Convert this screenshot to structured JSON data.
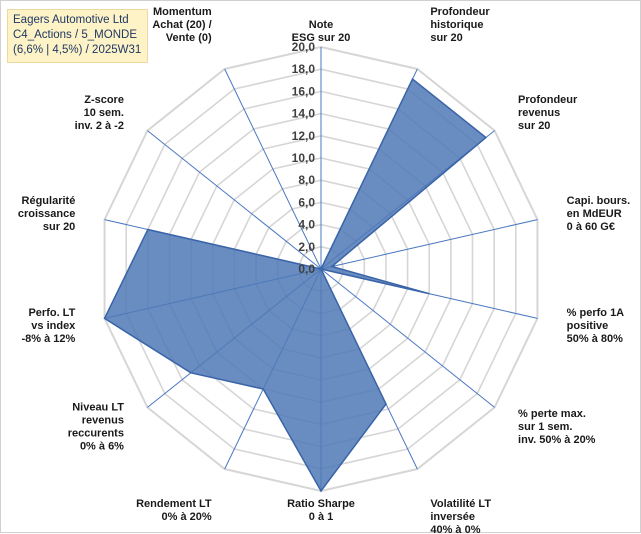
{
  "info_box": {
    "line1": "Eagers Automotive Ltd",
    "line2": "C4_Actions / 5_MONDE",
    "line3": "(6,6% | 4,5%) / 2025W31"
  },
  "colors": {
    "fill": "#4f79b6",
    "stroke": "#3a64a8",
    "grid": "#d6d6d6",
    "spoke": "#4a78c0"
  },
  "chart_data": {
    "type": "radar",
    "title": "",
    "rlim": [
      0,
      20
    ],
    "tick_labels": [
      "0,0",
      "2,0",
      "4,0",
      "6,0",
      "8,0",
      "10,0",
      "12,0",
      "14,0",
      "16,0",
      "18,0",
      "20,0"
    ],
    "grid": true,
    "categories": [
      [
        "Note",
        "ESG sur 20"
      ],
      [
        "Profondeur",
        "historique",
        "sur 20"
      ],
      [
        "Profondeur",
        "revenus",
        "sur 20"
      ],
      [
        "Capi. bours.",
        "en MdEUR",
        "0 à 60 G€"
      ],
      [
        "% perfo 1A",
        "positive",
        "50% à 80%"
      ],
      [
        "% perte max.",
        "sur 1 sem.",
        "inv. 50% à 20%"
      ],
      [
        "Volatilité LT",
        "inversée",
        "40% à 0%"
      ],
      [
        "Ratio Sharpe",
        "0 à 1"
      ],
      [
        "Rendement LT",
        "0% à 20%"
      ],
      [
        "Niveau LT",
        "revenus",
        "reccurents",
        "0% à 6%"
      ],
      [
        "Perfo. LT",
        "vs index",
        "-8% à 12%"
      ],
      [
        "Régularité",
        "croissance",
        "sur 20"
      ],
      [
        "Z-score",
        "10 sem.",
        "inv. 2 à -2"
      ],
      [
        "Momentum",
        "Achat (20) /",
        "Vente (0)"
      ]
    ],
    "values": [
      0.0,
      19.0,
      19.0,
      1.0,
      10.0,
      0.0,
      13.5,
      20.0,
      12.0,
      15.0,
      20.0,
      16.0,
      0.0,
      0.0
    ]
  }
}
